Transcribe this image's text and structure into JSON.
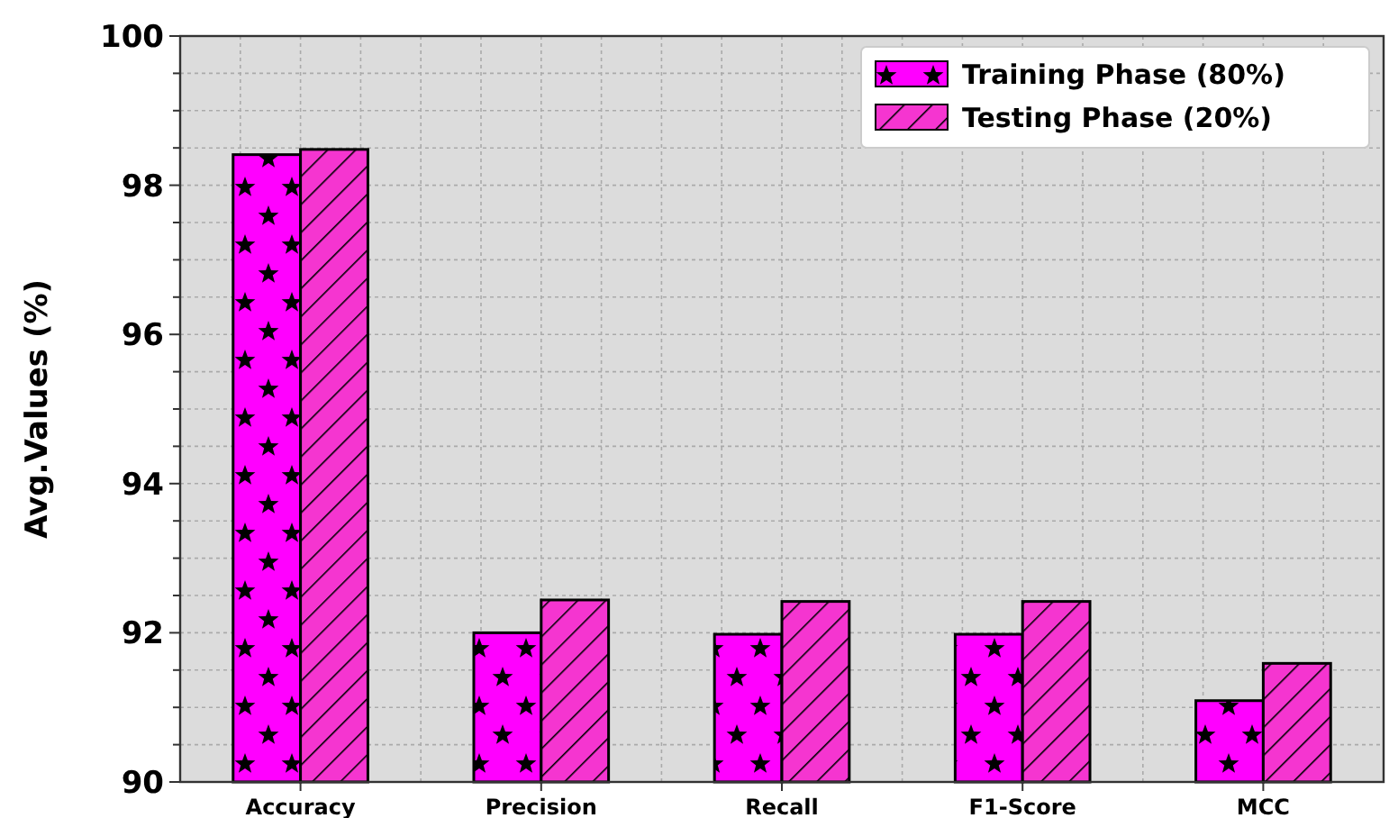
{
  "chart_data": {
    "type": "bar",
    "ylabel": "Avg.Values (%)",
    "categories": [
      "Accuracy",
      "Precision",
      "Recall",
      "F1-Score",
      "MCC"
    ],
    "series": [
      {
        "name": "Training Phase (80%)",
        "color": "#ff00ff",
        "values": [
          98.41,
          92.0,
          91.98,
          91.98,
          91.09
        ]
      },
      {
        "name": "Testing Phase (20%)",
        "color": "#f535d0",
        "values": [
          98.48,
          92.44,
          92.42,
          92.42,
          91.59
        ]
      }
    ],
    "ylim": [
      90,
      100
    ],
    "yticks": [
      90,
      {
        "value": 90.5,
        "label": null
      },
      92,
      {
        "value": 91,
        "label": null
      },
      {
        "value": 91.5,
        "label": null
      },
      {
        "value": 92.5,
        "label": null
      },
      {
        "value": 93,
        "label": null
      },
      {
        "value": 93.5,
        "label": null
      },
      94,
      {
        "value": 94.5,
        "label": null
      },
      {
        "value": 95,
        "label": null
      },
      {
        "value": 95.5,
        "label": null
      },
      96,
      {
        "value": 96.5,
        "label": null
      },
      {
        "value": 97,
        "label": null
      },
      {
        "value": 97.5,
        "label": null
      },
      98,
      {
        "value": 98.5,
        "label": null
      },
      {
        "value": 99,
        "label": null
      },
      {
        "value": 99.5,
        "label": null
      },
      100
    ],
    "grid": true,
    "legend": "top right"
  }
}
